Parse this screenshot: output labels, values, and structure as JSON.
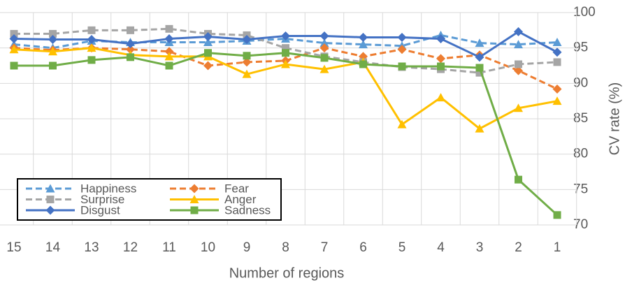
{
  "chart_data": {
    "type": "line",
    "xlabel": "Number of regions",
    "ylabel": "CV rate (%)",
    "categories": [
      "15",
      "14",
      "13",
      "12",
      "11",
      "10",
      "9",
      "8",
      "7",
      "6",
      "5",
      "4",
      "3",
      "2",
      "1"
    ],
    "ylim": [
      70,
      100
    ],
    "yticks": [
      70,
      75,
      80,
      85,
      90,
      95,
      100
    ],
    "grid": true,
    "legend": "lower left",
    "series": [
      {
        "name": "Happiness",
        "color": "#5b9bd5",
        "dashed": true,
        "marker": "triangle",
        "values": [
          95.5,
          95,
          96,
          95.8,
          95.8,
          95.8,
          96,
          96.3,
          95.7,
          95.5,
          95.3,
          96.8,
          95.7,
          95.5,
          95.8
        ]
      },
      {
        "name": "Fear",
        "color": "#ed7d31",
        "dashed": true,
        "marker": "diamond",
        "values": [
          95,
          94.7,
          95,
          94.8,
          94.5,
          92.5,
          93,
          93.2,
          95,
          93.8,
          94.8,
          93.5,
          94,
          91.8,
          89.2
        ]
      },
      {
        "name": "Surprise",
        "color": "#a5a5a5",
        "dashed": true,
        "marker": "square",
        "values": [
          97,
          97,
          97.5,
          97.5,
          97.7,
          97,
          96.8,
          95,
          93.8,
          93,
          92.3,
          92,
          91.5,
          92.7,
          93
        ]
      },
      {
        "name": "Anger",
        "color": "#ffc000",
        "dashed": false,
        "marker": "triangle",
        "values": [
          94.8,
          94.5,
          95,
          94,
          93.8,
          93.8,
          91.3,
          92.7,
          92,
          93,
          84.2,
          88,
          83.6,
          86.5,
          87.5
        ]
      },
      {
        "name": "Disgust",
        "color": "#4472c4",
        "dashed": false,
        "marker": "diamond",
        "values": [
          96.3,
          96.2,
          96.2,
          95.6,
          96.3,
          96.6,
          96.2,
          96.7,
          96.7,
          96.5,
          96.5,
          96.3,
          93.7,
          97.3,
          94.4
        ]
      },
      {
        "name": "Sadness",
        "color": "#70ad47",
        "dashed": false,
        "marker": "square",
        "values": [
          92.5,
          92.5,
          93.3,
          93.7,
          92.5,
          94.3,
          93.9,
          94.3,
          93.6,
          92.7,
          92.4,
          92.4,
          92.2,
          76.4,
          71.4
        ]
      }
    ]
  }
}
